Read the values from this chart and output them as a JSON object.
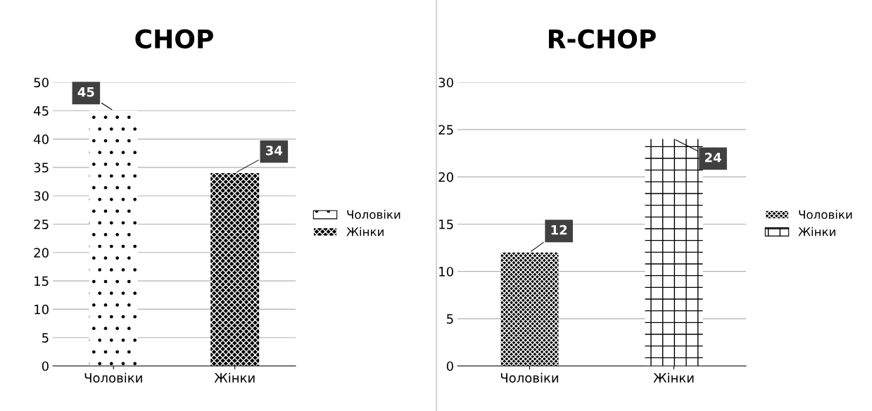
{
  "chart_data": [
    {
      "type": "bar",
      "title": "CHOP",
      "categories": [
        "Чоловіки",
        "Жінки"
      ],
      "series": [
        {
          "name": "Чоловіки",
          "color": "#ffffff",
          "values": [
            45,
            null
          ]
        },
        {
          "name": "Жінки",
          "color": "#000000",
          "values": [
            null,
            34
          ]
        }
      ],
      "data_labels": true,
      "ylim": [
        0,
        50
      ],
      "yticks": [
        0,
        5,
        10,
        15,
        20,
        25,
        30,
        35,
        40,
        45,
        50
      ],
      "grid": "y",
      "legend": "right"
    },
    {
      "type": "bar",
      "title": "R-CHOP",
      "categories": [
        "Чоловіки",
        "Жінки"
      ],
      "series": [
        {
          "name": "Чоловіки",
          "color": "#000000",
          "values": [
            12,
            null
          ]
        },
        {
          "name": "Жінки",
          "color": "#ffffff",
          "values": [
            null,
            24
          ]
        }
      ],
      "data_labels": true,
      "ylim": [
        0,
        30
      ],
      "yticks": [
        0,
        5,
        10,
        15,
        20,
        25,
        30
      ],
      "grid": "y",
      "legend": "right"
    }
  ]
}
